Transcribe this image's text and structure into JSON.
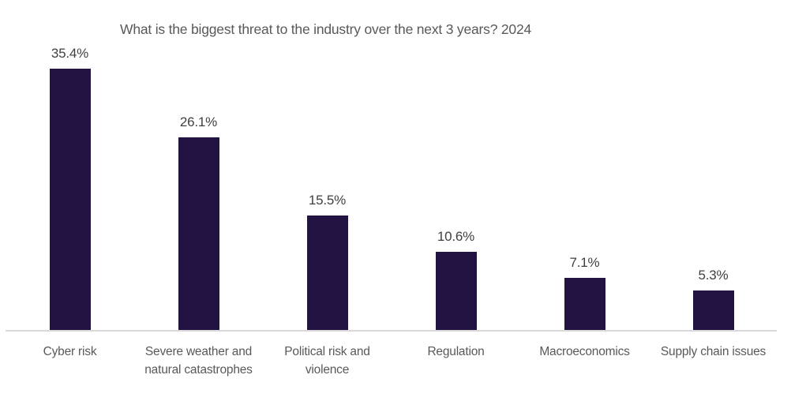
{
  "chart_data": {
    "type": "bar",
    "title": "What is the biggest threat to the industry over the next 3 years? 2024",
    "categories": [
      "Cyber risk",
      "Severe weather and natural catastrophes",
      "Political risk and violence",
      "Regulation",
      "Macroeconomics",
      "Supply chain issues"
    ],
    "values": [
      35.4,
      26.1,
      15.5,
      10.6,
      7.1,
      5.3
    ],
    "data_labels": [
      "35.4%",
      "26.1%",
      "15.5%",
      "10.6%",
      "7.1%",
      "5.3%"
    ],
    "xlabel": "",
    "ylabel": "",
    "ylim": [
      0,
      39
    ],
    "grid": false,
    "legend": "none",
    "y_axis_visible": false,
    "colors": {
      "bar": "#231342",
      "axis_line": "#D9D9D9",
      "title": "#595959",
      "data_label": "#404040",
      "category_label": "#595959"
    }
  }
}
